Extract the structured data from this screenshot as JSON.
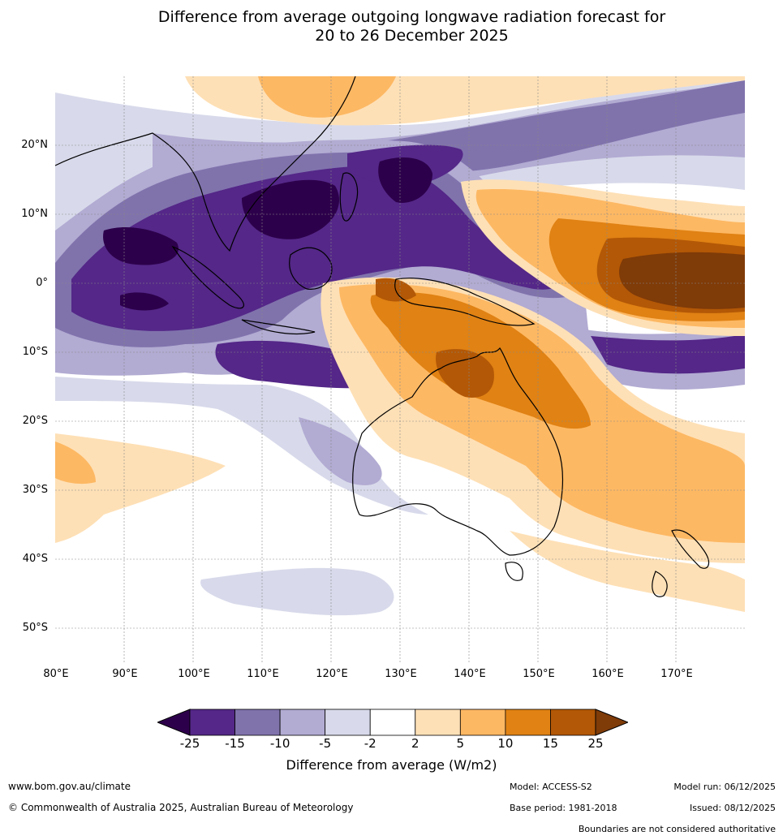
{
  "title": {
    "line1": "Difference from average outgoing longwave radiation forecast for",
    "line2": "20 to 26 December 2025"
  },
  "axes": {
    "lat_labels": [
      "20°N",
      "10°N",
      "0°",
      "10°S",
      "20°S",
      "30°S",
      "40°S",
      "50°S"
    ],
    "lon_labels": [
      "80°E",
      "90°E",
      "100°E",
      "110°E",
      "120°E",
      "130°E",
      "140°E",
      "150°E",
      "160°E",
      "170°E"
    ]
  },
  "legend": {
    "ticks": [
      "-25",
      "-15",
      "-10",
      "-5",
      "-2",
      "2",
      "5",
      "10",
      "15",
      "25"
    ],
    "label": "Difference from average (W/m2)",
    "colors": [
      "#2d004b",
      "#542788",
      "#8073ac",
      "#b2abd2",
      "#d8daeb",
      "#ffffff",
      "#fee0b6",
      "#fdb863",
      "#e08214",
      "#b35806",
      "#7f3b08"
    ]
  },
  "footer": {
    "website": "www.bom.gov.au/climate",
    "copyright": "© Commonwealth of Australia 2025, Australian Bureau of Meteorology",
    "model": "Model: ACCESS-S2",
    "base_period": "Base period: 1981-2018",
    "model_run": "Model run: 06/12/2025",
    "issued": "Issued: 08/12/2025",
    "disclaimer": "Boundaries are not considered authoritative"
  }
}
